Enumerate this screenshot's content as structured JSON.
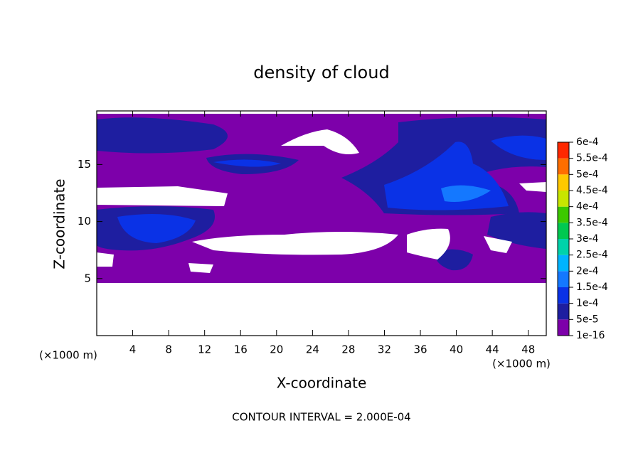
{
  "chart_data": {
    "type": "contour",
    "title": "density of cloud",
    "xlabel": "X-coordinate",
    "ylabel": "Z-coordinate",
    "xunit": "(×1000 m)",
    "yunit": "(×1000 m)",
    "annotation": "CONTOUR INTERVAL = 2.000E-04",
    "xlim": [
      0,
      50
    ],
    "xticks": [
      4,
      8,
      12,
      16,
      20,
      24,
      28,
      32,
      36,
      40,
      44,
      48
    ],
    "ylim": [
      0,
      19.7
    ],
    "yticks": [
      5,
      10,
      15
    ],
    "levels": [
      {
        "value": 1e-16,
        "label": "1e-16"
      },
      {
        "value": 5e-05,
        "label": "5e-5"
      },
      {
        "value": 0.0001,
        "label": "1e-4"
      },
      {
        "value": 0.00015,
        "label": "1.5e-4"
      },
      {
        "value": 0.0002,
        "label": "2e-4"
      },
      {
        "value": 0.00025,
        "label": "2.5e-4"
      },
      {
        "value": 0.0003,
        "label": "3e-4"
      },
      {
        "value": 0.00035,
        "label": "3.5e-4"
      },
      {
        "value": 0.0004,
        "label": "4e-4"
      },
      {
        "value": 0.00045,
        "label": "4.5e-4"
      },
      {
        "value": 0.0005,
        "label": "5e-4"
      },
      {
        "value": 0.00055,
        "label": "5.5e-4"
      },
      {
        "value": 0.0006,
        "label": "6e-4"
      }
    ],
    "colors": [
      "#7d00aa",
      "#1e1ea0",
      "#0a32e6",
      "#1478ff",
      "#00b4ff",
      "#00d2aa",
      "#00c850",
      "#3cc800",
      "#c8e600",
      "#ffc800",
      "#ff6e00",
      "#ff2800"
    ]
  }
}
